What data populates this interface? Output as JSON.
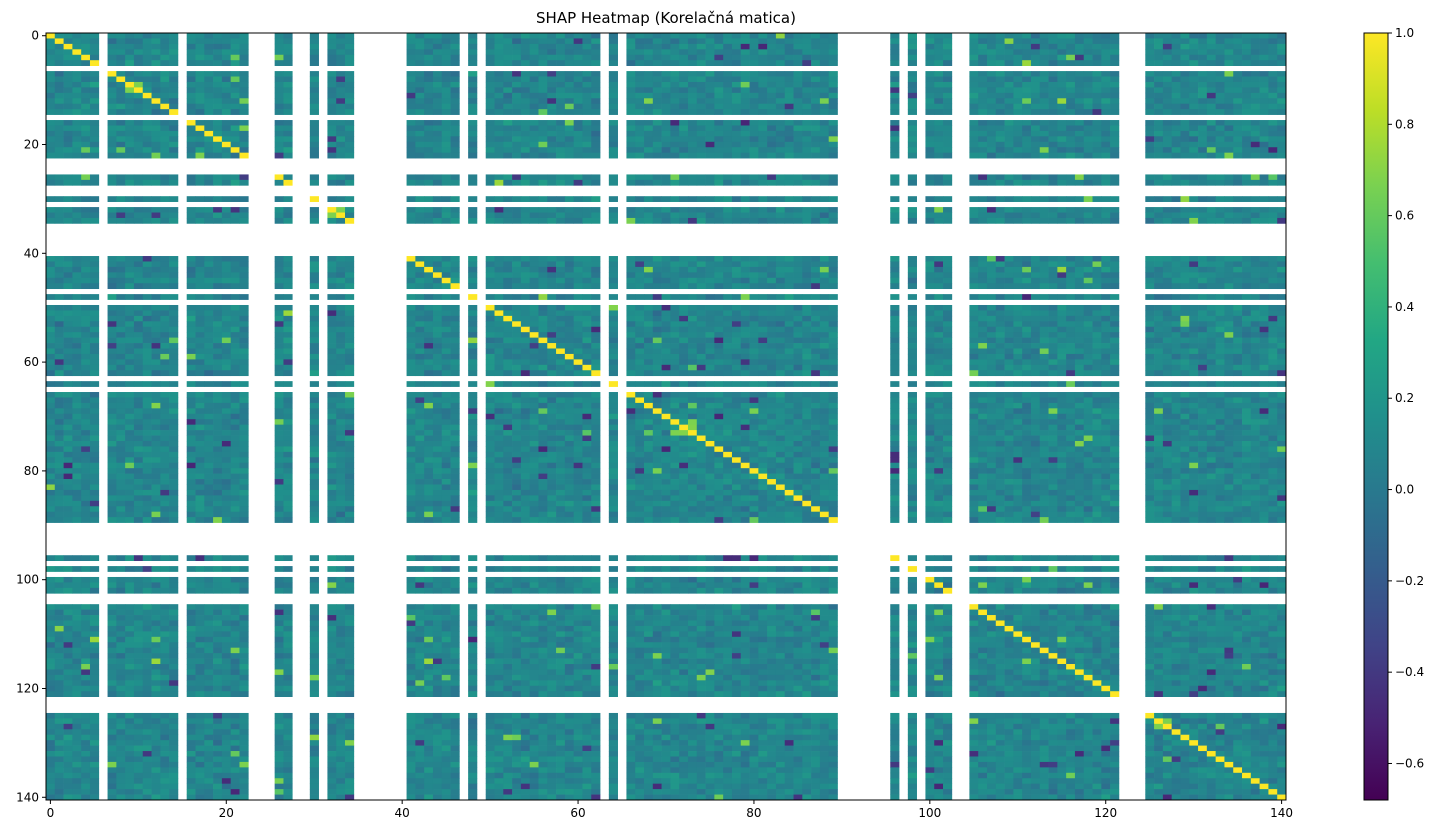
{
  "chart_data": {
    "type": "heatmap",
    "title": "SHAP Heatmap (Korelačná matica)",
    "xlabel": "",
    "ylabel": "",
    "size": 141,
    "xlim": [
      -0.5,
      140.5
    ],
    "ylim": [
      140.5,
      -0.5
    ],
    "x_ticks": [
      0,
      20,
      40,
      60,
      80,
      100,
      120,
      140
    ],
    "y_ticks": [
      0,
      20,
      40,
      60,
      80,
      100,
      120,
      140
    ],
    "colormap": "viridis",
    "colorbar": {
      "min": -0.68,
      "max": 1.0,
      "ticks": [
        -0.6,
        -0.4,
        -0.2,
        0.0,
        0.2,
        0.4,
        0.6,
        0.8,
        1.0
      ],
      "tick_labels": [
        "−0.6",
        "−0.4",
        "−0.2",
        "0.0",
        "0.2",
        "0.4",
        "0.6",
        "0.8",
        "1.0"
      ]
    },
    "nan_color": "#ffffff",
    "nan_indices": [
      6,
      15,
      23,
      24,
      25,
      28,
      29,
      31,
      35,
      36,
      37,
      38,
      39,
      40,
      47,
      49,
      63,
      65,
      90,
      91,
      92,
      93,
      94,
      95,
      97,
      99,
      103,
      104,
      122,
      123,
      124
    ],
    "diagonal_value": 1.0,
    "typical_range": [
      -0.25,
      0.45
    ],
    "notes_visible": "off-diagonal values mostly between -0.2 and 0.4; diagonal equals 1.0; some rows/columns entirely missing (white)"
  }
}
